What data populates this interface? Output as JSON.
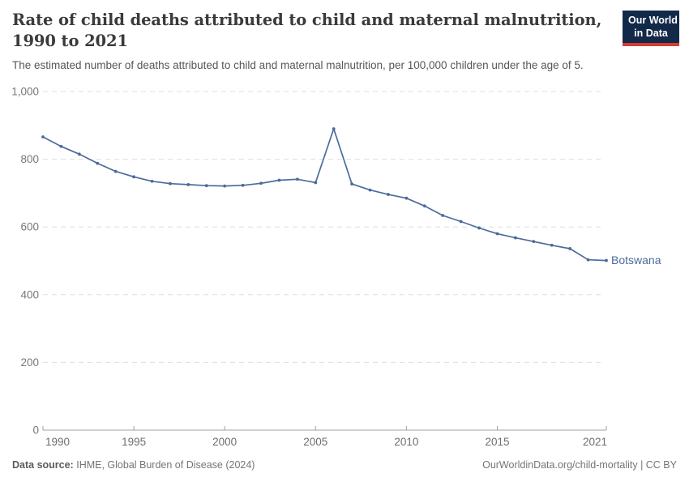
{
  "header": {
    "title_lines": [
      "Rate of child deaths attributed to child and maternal malnutrition,",
      "1990 to 2021"
    ],
    "subtitle": "The estimated number of deaths attributed to child and maternal malnutrition, per 100,000 children under the age of 5."
  },
  "logo": {
    "line1": "Our World",
    "line2": "in Data"
  },
  "footer": {
    "datasource_label": "Data source:",
    "datasource_value": "IHME, Global Burden of Disease (2024)",
    "rights": "OurWorldinData.org/child-mortality | CC BY"
  },
  "chart_data": {
    "type": "line",
    "title": "Rate of child deaths attributed to child and maternal malnutrition, 1990 to 2021",
    "xlabel": "",
    "ylabel": "",
    "x": [
      1990,
      1991,
      1992,
      1993,
      1994,
      1995,
      1996,
      1997,
      1998,
      1999,
      2000,
      2001,
      2002,
      2003,
      2004,
      2005,
      2006,
      2007,
      2008,
      2009,
      2010,
      2011,
      2012,
      2013,
      2014,
      2015,
      2016,
      2017,
      2018,
      2019,
      2020,
      2021
    ],
    "series": [
      {
        "name": "Botswana",
        "color": "#4c6a9c",
        "values": [
          866,
          838,
          815,
          788,
          764,
          748,
          735,
          728,
          725,
          722,
          721,
          723,
          729,
          738,
          741,
          731,
          890,
          727,
          709,
          696,
          685,
          662,
          634,
          616,
          597,
          580,
          568,
          557,
          546,
          536,
          503,
          501
        ]
      }
    ],
    "ylim": [
      0,
      1000
    ],
    "yticks": [
      0,
      200,
      400,
      600,
      800,
      1000
    ],
    "ytick_labels": [
      "0",
      "200",
      "400",
      "600",
      "800",
      "1,000"
    ],
    "xticks": [
      1990,
      1995,
      2000,
      2005,
      2010,
      2015,
      2021
    ],
    "xtick_labels": [
      "1990",
      "1995",
      "2000",
      "2005",
      "2010",
      "2015",
      "2021"
    ],
    "grid": "horizontal-dashed",
    "legend_position": "end-of-line-label"
  },
  "colors": {
    "line": "#4c6a9c",
    "grid": "#dedede",
    "axis": "#a1a1a1",
    "tick_label": "#6e6e6e",
    "series_label": "#4c6a9c",
    "logo_bg": "#12294a",
    "logo_accent": "#d73c32"
  }
}
